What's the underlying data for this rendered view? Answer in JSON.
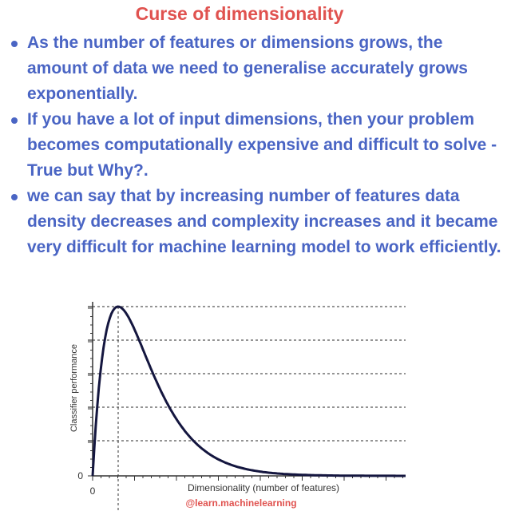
{
  "title": "Curse of dimensionality",
  "bullets": [
    "As the number of features or dimensions grows, the amount of data we need to generalise accurately grows exponentially.",
    "If you have a lot of input dimensions, then your problem becomes computationally expensive and difficult to solve - True but Why?.",
    "we can say that by increasing number of features data density decreases and complexity increases and it became very difficult for machine learning model to work efficiently."
  ],
  "chart_data": {
    "type": "line",
    "title": "",
    "xlabel": "Dimensionality (number of features)",
    "ylabel": "Classifier performance",
    "x_origin_label": "0",
    "y_origin_label": "0",
    "curve_shape": "rises steeply to a single peak, then decays slowly toward zero",
    "grid": "dashed horizontal lines at y ticks, dashed vertical line at peak",
    "credit": "@learn.machinelearning"
  },
  "colors": {
    "title": "#e0524f",
    "text": "#4a65c4",
    "curve": "#14163f",
    "axis": "#333333",
    "credit": "#e0524f"
  }
}
